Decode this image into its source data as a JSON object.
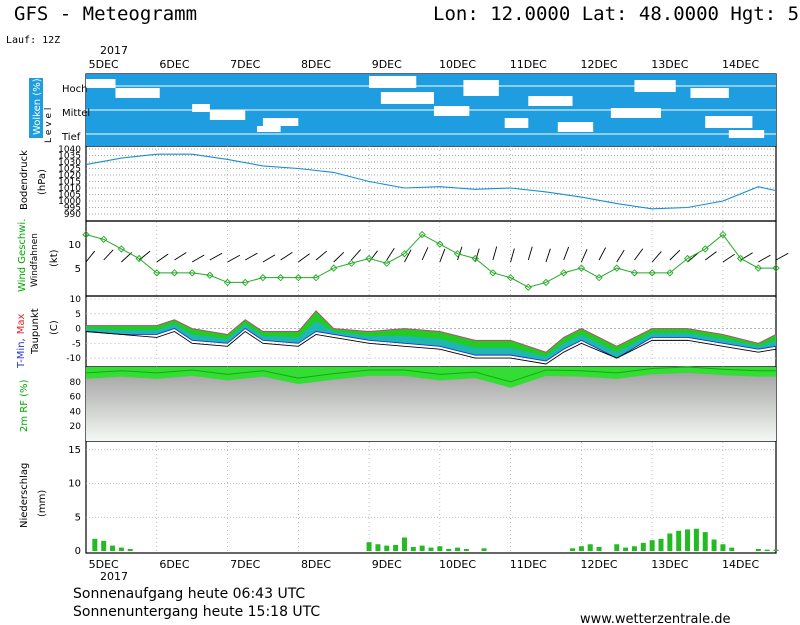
{
  "header": {
    "title": "GFS - Meteogramm",
    "location": "Lon: 12.0000  Lat: 48.0000  Hgt: 5",
    "run": "Lauf: 12Z",
    "year_top": "2017",
    "year_bottom": "2017"
  },
  "days": [
    "5DEC",
    "6DEC",
    "7DEC",
    "8DEC",
    "9DEC",
    "10DEC",
    "11DEC",
    "12DEC",
    "13DEC",
    "14DEC"
  ],
  "footer": {
    "sunrise": "Sonnenaufgang heute 06:43 UTC",
    "sunset": "Sonnenuntergang heute 15:18 UTC",
    "website": "www.wetterzentrale.de"
  },
  "panels": {
    "clouds": {
      "label": "Wolken (%)",
      "sublabel": "L e v e l",
      "levels": [
        "Hoch",
        "Mittel",
        "Tief"
      ]
    },
    "pressure": {
      "label": "Bodendruck",
      "unit": "(hPa)",
      "ticks": [
        "1040",
        "1035",
        "1030",
        "1025",
        "1020",
        "1015",
        "1010",
        "1005",
        "1000",
        "995",
        "990"
      ]
    },
    "wind": {
      "label": "Wind Geschwi.",
      "sublabel": "Windfahnen",
      "unit": "(kt)",
      "ticks": [
        "5",
        "10"
      ]
    },
    "temp": {
      "label_tmin": "T-Min,",
      "label_tmax": "Max",
      "label_dew": "Taupunkt",
      "unit": "(C)",
      "ticks": [
        "10",
        "5",
        "0",
        "-5",
        "-10"
      ]
    },
    "rh": {
      "label": "2m RF (%)",
      "ticks": [
        "80",
        "60",
        "40",
        "20"
      ]
    },
    "precip": {
      "label": "Niederschlag",
      "unit": "(mm)",
      "ticks": [
        "15",
        "10",
        "5",
        "0"
      ]
    }
  },
  "chart_data": [
    {
      "type": "line",
      "title": "Bodendruck",
      "ylabel": "(hPa)",
      "ylim": [
        990,
        1040
      ],
      "x_hours": [
        0,
        12,
        24,
        36,
        48,
        60,
        72,
        84,
        96,
        108,
        120,
        132,
        144,
        156,
        168,
        180,
        192,
        204,
        216,
        228,
        234
      ],
      "values": [
        1028,
        1033,
        1036,
        1036,
        1032,
        1027,
        1025,
        1022,
        1015,
        1010,
        1011,
        1009,
        1010,
        1007,
        1003,
        998,
        994,
        995,
        1000,
        1011,
        1008
      ]
    },
    {
      "type": "line",
      "title": "Wind Geschwi.",
      "ylabel": "(kt)",
      "ylim": [
        0,
        14
      ],
      "x_hours": [
        0,
        6,
        12,
        18,
        24,
        30,
        36,
        42,
        48,
        54,
        60,
        66,
        72,
        78,
        84,
        90,
        96,
        102,
        108,
        114,
        120,
        126,
        132,
        138,
        144,
        150,
        156,
        162,
        168,
        174,
        180,
        186,
        192,
        198,
        204,
        210,
        216,
        222,
        228,
        234
      ],
      "values": [
        12,
        11,
        9,
        7,
        4,
        4,
        4,
        3.5,
        2,
        2,
        3,
        3,
        3,
        3,
        5,
        6,
        7,
        6,
        8,
        12,
        10,
        8,
        7,
        4,
        3,
        1,
        2,
        4,
        5,
        3,
        5,
        4,
        4,
        4,
        7,
        9,
        12,
        7,
        5,
        5
      ]
    },
    {
      "type": "area",
      "title": "T-Min, Max / Taupunkt",
      "ylabel": "(C)",
      "ylim": [
        -12,
        10
      ],
      "x_hours": [
        0,
        12,
        24,
        30,
        36,
        48,
        54,
        60,
        72,
        78,
        84,
        96,
        108,
        120,
        132,
        144,
        156,
        162,
        168,
        180,
        192,
        204,
        216,
        228,
        234
      ],
      "series": [
        {
          "name": "T-Max",
          "values": [
            1,
            1,
            1,
            3,
            0,
            -2,
            3,
            -1,
            -1,
            6,
            0,
            -1,
            0,
            -1,
            -4,
            -4,
            -8,
            -3,
            0,
            -6,
            0,
            0,
            -2,
            -5,
            -2
          ]
        },
        {
          "name": "T-Min",
          "values": [
            -1,
            -2,
            -2,
            0,
            -4,
            -5,
            0,
            -4,
            -5,
            -1,
            -2,
            -4,
            -5,
            -6,
            -9,
            -9,
            -11,
            -7,
            -4,
            -10,
            -3,
            -3,
            -5,
            -7,
            -6
          ]
        },
        {
          "name": "Taupunkt",
          "values": [
            -1,
            -2,
            -3,
            -1,
            -5,
            -6,
            -1,
            -5,
            -6,
            -2,
            -3,
            -5,
            -6,
            -7,
            -10,
            -10,
            -12,
            -8,
            -5,
            -10,
            -4,
            -4,
            -6,
            -8,
            -7
          ]
        }
      ]
    },
    {
      "type": "area",
      "title": "2m RF (%)",
      "ylim": [
        0,
        100
      ],
      "x_hours": [
        0,
        12,
        24,
        36,
        48,
        60,
        72,
        84,
        96,
        108,
        120,
        132,
        144,
        156,
        168,
        180,
        192,
        204,
        216,
        228,
        234
      ],
      "values": [
        92,
        95,
        92,
        96,
        90,
        95,
        85,
        91,
        96,
        96,
        90,
        93,
        80,
        96,
        95,
        92,
        98,
        100,
        97,
        95,
        95
      ]
    },
    {
      "type": "bar",
      "title": "Niederschlag",
      "ylabel": "(mm)",
      "ylim": [
        0,
        16
      ],
      "x_hours": [
        3,
        6,
        9,
        12,
        15,
        96,
        99,
        102,
        105,
        108,
        111,
        114,
        117,
        120,
        123,
        126,
        129,
        135,
        165,
        168,
        171,
        174,
        180,
        183,
        186,
        189,
        192,
        195,
        198,
        201,
        204,
        207,
        210,
        213,
        216,
        219,
        228,
        231,
        234
      ],
      "values": [
        1.8,
        1.5,
        0.8,
        0.5,
        0.3,
        1.3,
        1.0,
        0.8,
        0.9,
        2.0,
        0.6,
        0.8,
        0.5,
        0.7,
        0.3,
        0.5,
        0.3,
        0.4,
        0.4,
        0.7,
        1.0,
        0.6,
        1.0,
        0.5,
        0.7,
        1.2,
        1.6,
        1.8,
        2.6,
        3.0,
        3.2,
        3.3,
        2.8,
        1.7,
        1.0,
        0.5,
        0.3,
        0.2,
        0.2
      ]
    }
  ]
}
